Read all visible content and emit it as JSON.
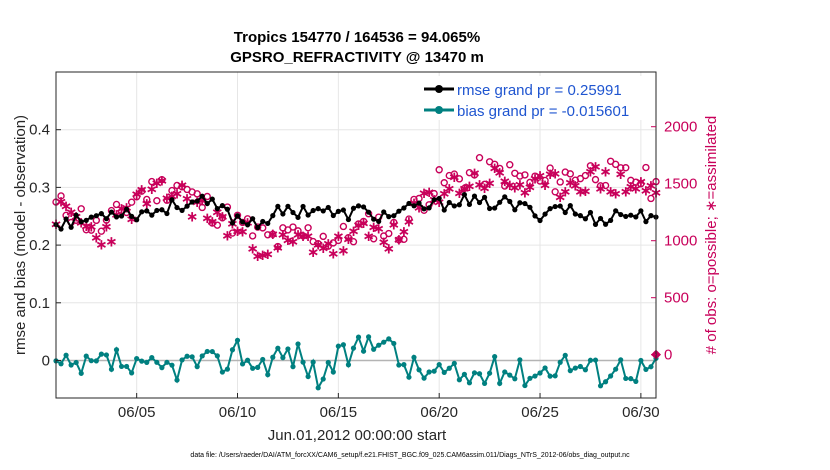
{
  "chart_data": {
    "type": "line",
    "title_line1": "Tropics 154770 / 164536 = 94.065%",
    "title_line2": "GPSRO_REFRACTIVITY @ 13470 m",
    "xlabel": "Jun.01,2012 00:00:00 start",
    "ylabel_left": "rmse and bias (model - observation)",
    "ylabel_right": "# of obs: o=possible; ∗=assimilated",
    "x_ticks": [
      "06/05",
      "06/10",
      "06/15",
      "06/20",
      "06/25",
      "06/30"
    ],
    "x_tick_days": [
      5,
      10,
      15,
      20,
      25,
      30
    ],
    "xlim": [
      1,
      30.75
    ],
    "ylim_left": [
      -0.065,
      0.5
    ],
    "y_ticks_left": [
      "0",
      "0.1",
      "0.2",
      "0.3",
      "0.4"
    ],
    "y_tick_values_left": [
      0,
      0.1,
      0.2,
      0.3,
      0.4
    ],
    "ylim_right": [
      -380,
      2480
    ],
    "y_ticks_right": [
      "0",
      "500",
      "1000",
      "1500",
      "2000"
    ],
    "y_tick_values_right": [
      0,
      500,
      1000,
      1500,
      2000
    ],
    "grid": true,
    "legend": [
      {
        "label": "rmse grand pr = 0.25991",
        "color": "#000000"
      },
      {
        "label": "bias grand pr = -0.015601",
        "color": "#008080"
      }
    ],
    "series": [
      {
        "name": "rmse",
        "axis": "left",
        "color": "#000000",
        "anchors_day": [
          1,
          2,
          3,
          4,
          5,
          6,
          7,
          8,
          9,
          10,
          11,
          12,
          13,
          14,
          15,
          16,
          17,
          18,
          19,
          20,
          21,
          22,
          23,
          24,
          25,
          26,
          27,
          28,
          29,
          30,
          30.75
        ],
        "anchors_value": [
          0.24,
          0.24,
          0.25,
          0.26,
          0.255,
          0.26,
          0.27,
          0.275,
          0.265,
          0.245,
          0.24,
          0.255,
          0.26,
          0.265,
          0.25,
          0.26,
          0.25,
          0.255,
          0.265,
          0.27,
          0.28,
          0.27,
          0.275,
          0.265,
          0.255,
          0.27,
          0.25,
          0.245,
          0.255,
          0.25,
          0.255
        ]
      },
      {
        "name": "bias",
        "axis": "left",
        "color": "#008080",
        "anchors_day": [
          1,
          2,
          3,
          4,
          5,
          6,
          7,
          8,
          9,
          10,
          11,
          12,
          13,
          14,
          15,
          16,
          17,
          18,
          19,
          20,
          21,
          22,
          23,
          24,
          25,
          26,
          27,
          28,
          29,
          30,
          30.75
        ],
        "anchors_value": [
          -0.01,
          -0.02,
          -0.01,
          0.0,
          -0.02,
          -0.015,
          -0.01,
          0.0,
          -0.01,
          0.02,
          -0.01,
          0.01,
          0.01,
          -0.03,
          0.0,
          0.02,
          0.05,
          0.0,
          -0.02,
          -0.02,
          -0.03,
          -0.025,
          -0.015,
          -0.02,
          -0.02,
          0.0,
          -0.01,
          -0.02,
          -0.01,
          -0.015,
          -0.01
        ]
      },
      {
        "name": "obs possible",
        "axis": "right",
        "color": "#c8005a",
        "marker": "circle",
        "anchors_day": [
          1,
          2,
          3,
          4,
          5,
          6,
          7,
          8,
          9,
          10,
          11,
          12,
          13,
          14,
          15,
          16,
          17,
          18,
          19,
          20,
          21,
          22,
          23,
          24,
          25,
          26,
          27,
          28,
          29,
          30,
          30.75
        ],
        "anchors_value": [
          1300,
          1250,
          1100,
          1200,
          1400,
          1450,
          1500,
          1350,
          1250,
          1150,
          1050,
          1000,
          1050,
          1050,
          1000,
          1100,
          1150,
          1050,
          1350,
          1500,
          1550,
          1600,
          1600,
          1550,
          1500,
          1550,
          1600,
          1600,
          1550,
          1550,
          1450
        ]
      },
      {
        "name": "obs assimilated",
        "axis": "right",
        "color": "#c8005a",
        "marker": "asterisk",
        "anchors_day": [
          1,
          2,
          3,
          4,
          5,
          6,
          7,
          8,
          9,
          10,
          11,
          12,
          13,
          14,
          15,
          16,
          17,
          18,
          19,
          20,
          21,
          22,
          23,
          24,
          25,
          26,
          27,
          28,
          29,
          30,
          30.75
        ],
        "anchors_value": [
          1250,
          1200,
          1050,
          1150,
          1350,
          1400,
          1450,
          1300,
          1200,
          1100,
          1000,
          950,
          1000,
          1000,
          950,
          1050,
          1100,
          1000,
          1300,
          1450,
          1500,
          1550,
          1550,
          1500,
          1450,
          1500,
          1550,
          1550,
          1500,
          1500,
          1400
        ]
      }
    ],
    "points_per_day": 4,
    "zero_line_color": "#b4b4b4"
  },
  "footnote": "data file: /Users/raeder/DAI/ATM_forcXX/CAM6_setup/f.e21.FHIST_BGC.f09_025.CAM6assim.011/Diags_NTrS_2012-06/obs_diag_output.nc"
}
